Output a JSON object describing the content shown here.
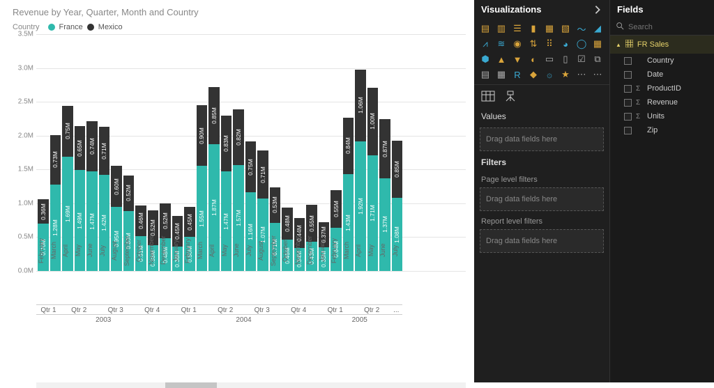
{
  "chart": {
    "title": "Revenue by Year, Quarter, Month and Country",
    "legend_label": "Country",
    "series": [
      {
        "name": "France",
        "color": "#2fb9ac"
      },
      {
        "name": "Mexico",
        "color": "#333333"
      }
    ],
    "y": {
      "min": 0,
      "max": 3.5,
      "step": 0.5,
      "unit": "M"
    },
    "grid_color": "#e4e4e4",
    "bg": "#ffffff",
    "bars": [
      {
        "month": "February",
        "quarter": "Qtr 1",
        "year": "2003",
        "france": 0.7,
        "mexico": 0.36
      },
      {
        "month": "March",
        "quarter": "Qtr 1",
        "year": "2003",
        "france": 1.28,
        "mexico": 0.73
      },
      {
        "month": "April",
        "quarter": "Qtr 2",
        "year": "2003",
        "france": 1.69,
        "mexico": 0.75
      },
      {
        "month": "May",
        "quarter": "Qtr 2",
        "year": "2003",
        "france": 1.49,
        "mexico": 0.65
      },
      {
        "month": "June",
        "quarter": "Qtr 2",
        "year": "2003",
        "france": 1.47,
        "mexico": 0.74
      },
      {
        "month": "July",
        "quarter": "Qtr 3",
        "year": "2003",
        "france": 1.42,
        "mexico": 0.71
      },
      {
        "month": "August",
        "quarter": "Qtr 3",
        "year": "2003",
        "france": 0.95,
        "mexico": 0.6
      },
      {
        "month": "September",
        "quarter": "Qtr 3",
        "year": "2003",
        "france": 0.89,
        "mexico": 0.52
      },
      {
        "month": "October",
        "quarter": "Qtr 4",
        "year": "2003",
        "france": 0.51,
        "mexico": 0.46
      },
      {
        "month": "November",
        "quarter": "Qtr 4",
        "year": "2003",
        "france": 0.38,
        "mexico": 0.52
      },
      {
        "month": "December",
        "quarter": "Qtr 4",
        "year": "2003",
        "france": 0.48,
        "mexico": 0.52
      },
      {
        "month": "January",
        "quarter": "Qtr 1",
        "year": "2004",
        "france": 0.36,
        "mexico": 0.45
      },
      {
        "month": "February",
        "quarter": "Qtr 1",
        "year": "2004",
        "france": 0.5,
        "mexico": 0.45
      },
      {
        "month": "March",
        "quarter": "Qtr 1",
        "year": "2004",
        "france": 1.55,
        "mexico": 0.9
      },
      {
        "month": "April",
        "quarter": "Qtr 2",
        "year": "2004",
        "france": 1.87,
        "mexico": 0.85
      },
      {
        "month": "May",
        "quarter": "Qtr 2",
        "year": "2004",
        "france": 1.47,
        "mexico": 0.83
      },
      {
        "month": "June",
        "quarter": "Qtr 2",
        "year": "2004",
        "france": 1.57,
        "mexico": 0.82
      },
      {
        "month": "July",
        "quarter": "Qtr 3",
        "year": "2004",
        "france": 1.16,
        "mexico": 0.75
      },
      {
        "month": "August",
        "quarter": "Qtr 3",
        "year": "2004",
        "france": 1.07,
        "mexico": 0.71
      },
      {
        "month": "September",
        "quarter": "Qtr 3",
        "year": "2004",
        "france": 0.71,
        "mexico": 0.53
      },
      {
        "month": "October",
        "quarter": "Qtr 4",
        "year": "2004",
        "france": 0.46,
        "mexico": 0.48
      },
      {
        "month": "November",
        "quarter": "Qtr 4",
        "year": "2004",
        "france": 0.34,
        "mexico": 0.44
      },
      {
        "month": "December",
        "quarter": "Qtr 4",
        "year": "2004",
        "france": 0.43,
        "mexico": 0.55
      },
      {
        "month": "January",
        "quarter": "Qtr 1",
        "year": "2005",
        "france": 0.35,
        "mexico": 0.37
      },
      {
        "month": "February",
        "quarter": "Qtr 1",
        "year": "2005",
        "france": 0.64,
        "mexico": 0.55
      },
      {
        "month": "March",
        "quarter": "Qtr 1",
        "year": "2005",
        "france": 1.43,
        "mexico": 0.84
      },
      {
        "month": "April",
        "quarter": "Qtr 2",
        "year": "2005",
        "france": 1.92,
        "mexico": 1.06
      },
      {
        "month": "May",
        "quarter": "Qtr 2",
        "year": "2005",
        "france": 1.71,
        "mexico": 1.0
      },
      {
        "month": "June",
        "quarter": "Qtr 2",
        "year": "2005",
        "france": 1.37,
        "mexico": 0.87
      },
      {
        "month": "July",
        "quarter": "...",
        "year": "2005",
        "france": 1.08,
        "mexico": 0.85
      }
    ],
    "scroll": {
      "thumb_left_pct": 30,
      "thumb_width_pct": 12
    }
  },
  "viz_panel": {
    "title": "Visualizations",
    "values_label": "Values",
    "values_placeholder": "Drag data fields here",
    "filters_label": "Filters",
    "page_filters_label": "Page level filters",
    "page_filters_placeholder": "Drag data fields here",
    "report_filters_label": "Report level filters",
    "report_filters_placeholder": "Drag data fields here",
    "icons": [
      "stacked-bar-h",
      "stacked-bar-v",
      "clustered-bar-h",
      "clustered-bar-v",
      "stacked100-h",
      "stacked100-v",
      "line",
      "area",
      "line-clustered",
      "line-stacked",
      "ribbon",
      "waterfall",
      "scatter",
      "pie",
      "donut",
      "treemap",
      "map",
      "filled-map",
      "funnel",
      "gauge",
      "card",
      "multi-card",
      "kpi",
      "slicer",
      "table",
      "matrix",
      "r-visual",
      "python",
      "arcgis",
      "key-influencers",
      "more",
      "more2"
    ]
  },
  "fields_panel": {
    "title": "Fields",
    "search_placeholder": "Search",
    "table": "FR Sales",
    "fields": [
      {
        "name": "Country",
        "agg": false
      },
      {
        "name": "Date",
        "agg": false
      },
      {
        "name": "ProductID",
        "agg": true
      },
      {
        "name": "Revenue",
        "agg": true
      },
      {
        "name": "Units",
        "agg": true
      },
      {
        "name": "Zip",
        "agg": false
      }
    ]
  }
}
